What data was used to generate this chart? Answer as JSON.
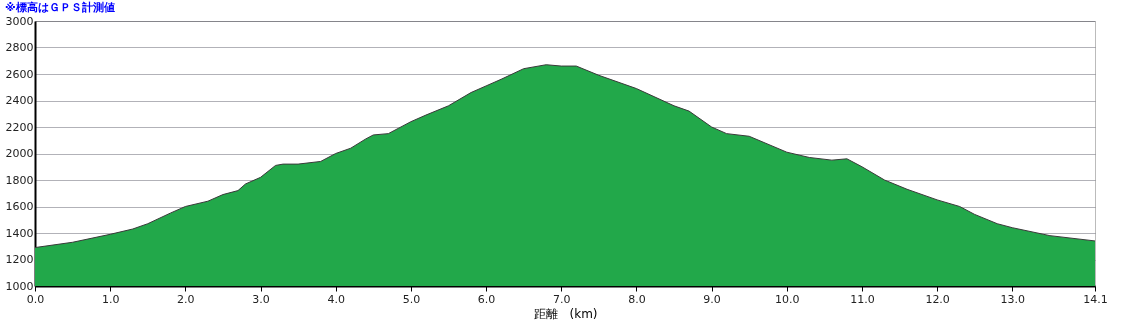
{
  "chart_data": {
    "type": "area",
    "title": "※標高はＧＰＳ計測値",
    "xlabel": "距離　(km)",
    "x": [
      0,
      0.5,
      1.0,
      1.3,
      1.5,
      1.8,
      2.0,
      2.3,
      2.5,
      2.7,
      2.8,
      3.0,
      3.2,
      3.3,
      3.5,
      3.8,
      4.0,
      4.2,
      4.4,
      4.5,
      4.7,
      5.0,
      5.2,
      5.5,
      5.8,
      6.0,
      6.2,
      6.5,
      6.8,
      7.0,
      7.2,
      7.5,
      8.0,
      8.5,
      8.7,
      9.0,
      9.2,
      9.5,
      10.0,
      10.3,
      10.6,
      10.8,
      11.0,
      11.3,
      11.6,
      12.0,
      12.3,
      12.5,
      12.8,
      13.0,
      13.5,
      14.1
    ],
    "series": [
      {
        "color": "#22a84a",
        "values": [
          1290,
          1330,
          1390,
          1430,
          1470,
          1550,
          1600,
          1640,
          1690,
          1720,
          1770,
          1820,
          1910,
          1920,
          1920,
          1940,
          2000,
          2040,
          2110,
          2140,
          2150,
          2240,
          2290,
          2360,
          2460,
          2510,
          2560,
          2640,
          2670,
          2660,
          2660,
          2590,
          2490,
          2360,
          2320,
          2200,
          2150,
          2130,
          2010,
          1970,
          1950,
          1960,
          1900,
          1800,
          1730,
          1650,
          1600,
          1540,
          1470,
          1440,
          1380,
          1340
        ]
      }
    ],
    "xlim": [
      0,
      14.1
    ],
    "xticks": [
      {
        "value": 0,
        "label": "0.0"
      },
      {
        "value": 1,
        "label": "1.0"
      },
      {
        "value": 2,
        "label": "2.0"
      },
      {
        "value": 3,
        "label": "3.0"
      },
      {
        "value": 4,
        "label": "4.0"
      },
      {
        "value": 5,
        "label": "5.0"
      },
      {
        "value": 6,
        "label": "6.0"
      },
      {
        "value": 7,
        "label": "7.0"
      },
      {
        "value": 8,
        "label": "8.0"
      },
      {
        "value": 9,
        "label": "9.0"
      },
      {
        "value": 10,
        "label": "10.0"
      },
      {
        "value": 11,
        "label": "11.0"
      },
      {
        "value": 12,
        "label": "12.0"
      },
      {
        "value": 13,
        "label": "13.0"
      },
      14.1
    ],
    "ylim": [
      1000,
      3000
    ],
    "yticks": [
      1000,
      1200,
      1400,
      1600,
      1800,
      2000,
      2200,
      2400,
      2600,
      2800,
      3000
    ],
    "grid": "y"
  }
}
